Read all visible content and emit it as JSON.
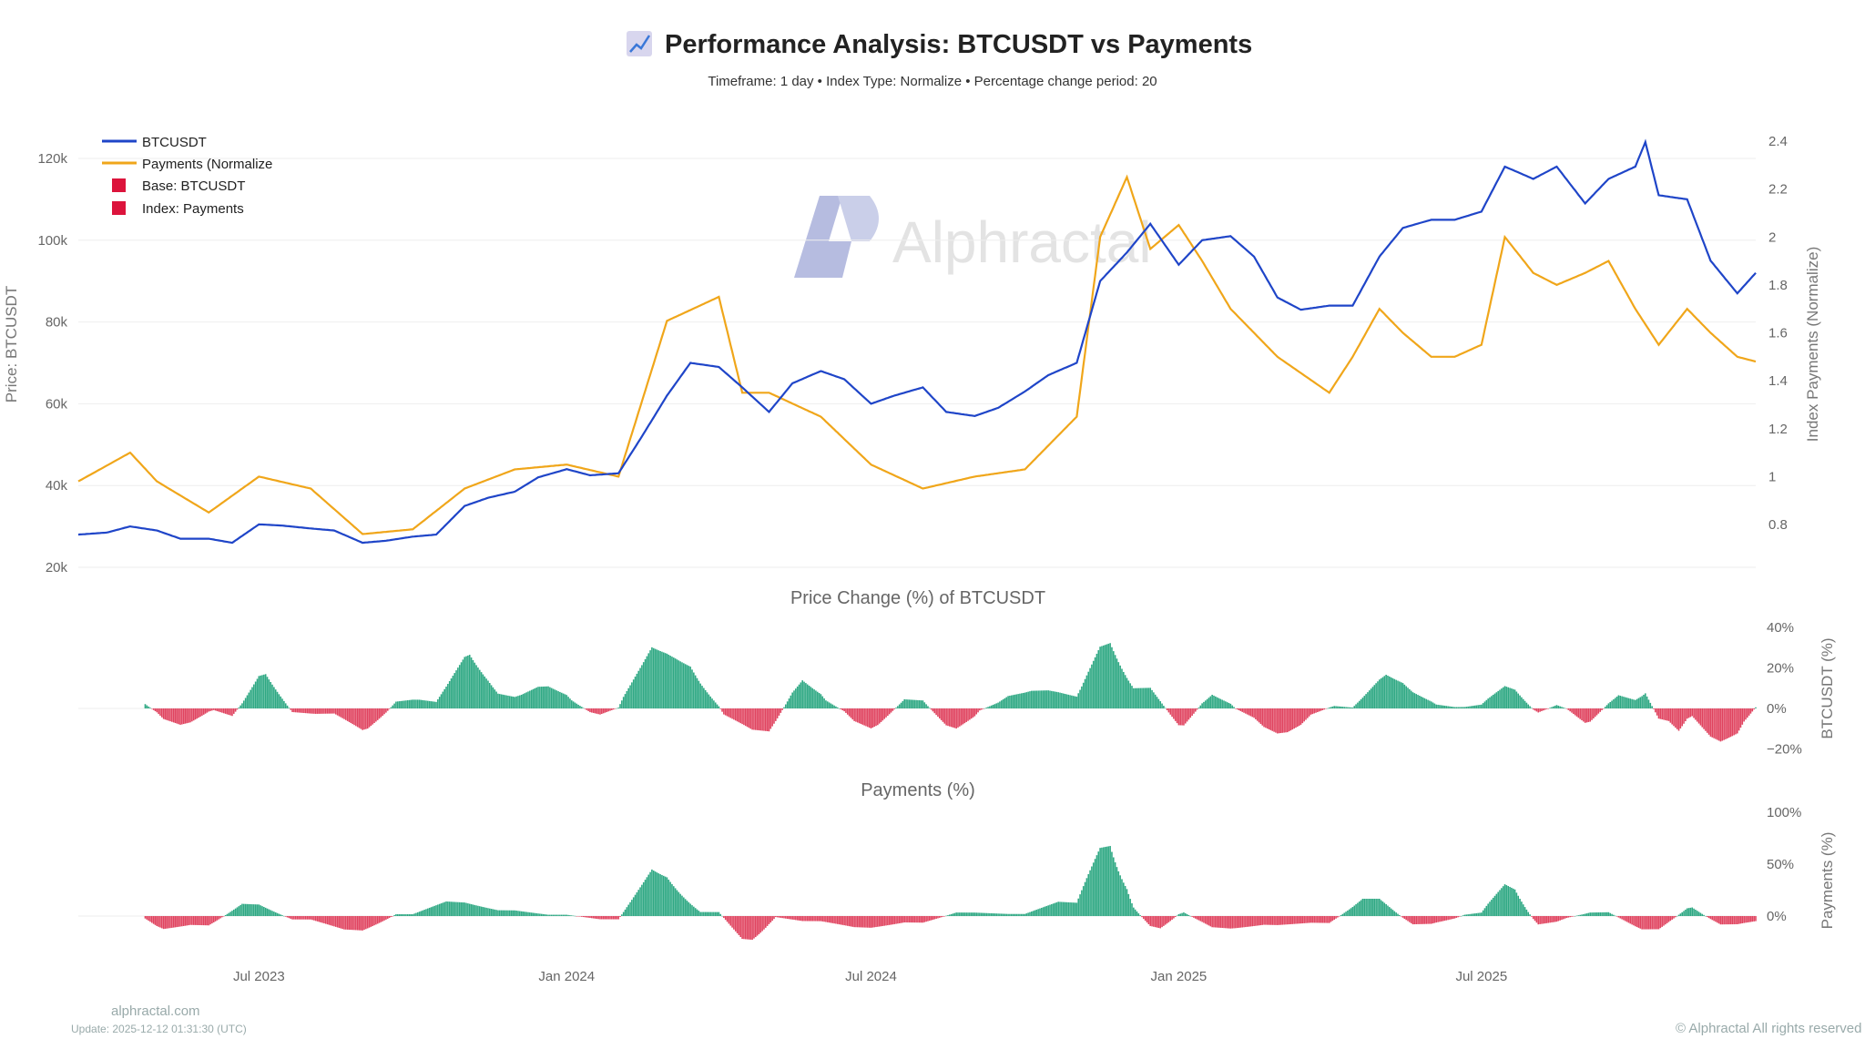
{
  "header": {
    "title": "Performance Analysis: BTCUSDT vs Payments",
    "title_icon": "chart-increasing-icon",
    "subtitle": "Timeframe: 1 day  •  Index Type: Normalize  •  Percentage change period: 20"
  },
  "watermark": "Alphractal",
  "footer": {
    "site": "alphractal.com",
    "update": "Update: 2025-12-12 01:31:30 (UTC)",
    "copyright": "© Alphractal All rights reserved"
  },
  "colors": {
    "btc": "#1f45c8",
    "payments": "#f0a61a",
    "positive": "#2ea883",
    "negative": "#e0435f",
    "legend_square": "#dc143c"
  },
  "chart_data": [
    {
      "type": "line",
      "legend": [
        "BTCUSDT",
        "Payments (Normalize",
        "Base: BTCUSDT",
        "Index: Payments"
      ],
      "legend_placement": "top-left",
      "ylabel_left": "Price: BTCUSDT",
      "ylabel_right": "Index Payments (Normalize)",
      "yticks_left": [
        "120k",
        "100k",
        "80k",
        "60k",
        "40k",
        "20k"
      ],
      "yticks_right": [
        "2.4",
        "2.2",
        "2",
        "1.8",
        "1.6",
        "1.4",
        "1.2",
        "1",
        "0.8"
      ],
      "ylim_left": [
        20000,
        120000
      ],
      "ylim_right": [
        0.8,
        2.4
      ],
      "xticks": [
        "Jul 2023",
        "Jan 2024",
        "Jul 2024",
        "Jan 2025",
        "Jul 2025"
      ],
      "xlim": [
        "2023-03-15",
        "2025-12-12"
      ],
      "grid": true,
      "series": [
        {
          "name": "BTCUSDT",
          "axis": "left",
          "x": [
            "2023-03-15",
            "2023-04-01",
            "2023-04-15",
            "2023-05-01",
            "2023-05-15",
            "2023-06-01",
            "2023-06-15",
            "2023-07-01",
            "2023-07-15",
            "2023-08-01",
            "2023-08-15",
            "2023-09-01",
            "2023-09-15",
            "2023-10-01",
            "2023-10-15",
            "2023-11-01",
            "2023-11-15",
            "2023-12-01",
            "2023-12-15",
            "2024-01-01",
            "2024-01-15",
            "2024-02-01",
            "2024-02-15",
            "2024-03-01",
            "2024-03-15",
            "2024-04-01",
            "2024-04-15",
            "2024-05-01",
            "2024-05-15",
            "2024-06-01",
            "2024-06-15",
            "2024-07-01",
            "2024-07-15",
            "2024-08-01",
            "2024-08-15",
            "2024-09-01",
            "2024-09-15",
            "2024-10-01",
            "2024-10-15",
            "2024-11-01",
            "2024-11-15",
            "2024-12-01",
            "2024-12-15",
            "2025-01-01",
            "2025-01-15",
            "2025-02-01",
            "2025-02-15",
            "2025-03-01",
            "2025-03-15",
            "2025-04-01",
            "2025-04-15",
            "2025-05-01",
            "2025-05-15",
            "2025-06-01",
            "2025-06-15",
            "2025-07-01",
            "2025-07-15",
            "2025-08-01",
            "2025-08-15",
            "2025-09-01",
            "2025-09-15",
            "2025-10-01",
            "2025-10-07",
            "2025-10-15",
            "2025-11-01",
            "2025-11-15",
            "2025-12-01",
            "2025-12-12"
          ],
          "y": [
            28000,
            28500,
            30000,
            29000,
            27000,
            27000,
            26000,
            30500,
            30200,
            29500,
            29000,
            26000,
            26500,
            27500,
            28000,
            35000,
            37000,
            38500,
            42000,
            44000,
            42500,
            43000,
            52000,
            62000,
            70000,
            69000,
            64000,
            58000,
            65000,
            68000,
            66000,
            60000,
            62000,
            64000,
            58000,
            57000,
            59000,
            63000,
            67000,
            70000,
            90000,
            97000,
            104000,
            94000,
            100000,
            101000,
            96000,
            86000,
            83000,
            84000,
            84000,
            96000,
            103000,
            105000,
            105000,
            107000,
            118000,
            115000,
            118000,
            109000,
            115000,
            118000,
            124000,
            111000,
            110000,
            95000,
            87000,
            92000
          ]
        },
        {
          "name": "Payments (Normalize",
          "axis": "right",
          "x": [
            "2023-03-15",
            "2023-04-15",
            "2023-05-01",
            "2023-06-01",
            "2023-07-01",
            "2023-08-01",
            "2023-09-01",
            "2023-10-01",
            "2023-11-01",
            "2023-12-01",
            "2024-01-01",
            "2024-02-01",
            "2024-03-01",
            "2024-04-01",
            "2024-04-15",
            "2024-05-01",
            "2024-06-01",
            "2024-07-01",
            "2024-08-01",
            "2024-09-01",
            "2024-10-01",
            "2024-11-01",
            "2024-11-15",
            "2024-12-01",
            "2024-12-15",
            "2025-01-01",
            "2025-01-15",
            "2025-02-01",
            "2025-03-01",
            "2025-04-01",
            "2025-04-15",
            "2025-05-01",
            "2025-05-15",
            "2025-06-01",
            "2025-06-15",
            "2025-07-01",
            "2025-07-15",
            "2025-08-01",
            "2025-08-15",
            "2025-09-01",
            "2025-09-15",
            "2025-10-01",
            "2025-10-15",
            "2025-11-01",
            "2025-11-15",
            "2025-12-01",
            "2025-12-12"
          ],
          "y": [
            0.98,
            1.1,
            0.98,
            0.85,
            1.0,
            0.95,
            0.76,
            0.78,
            0.95,
            1.03,
            1.05,
            1.0,
            1.65,
            1.75,
            1.35,
            1.35,
            1.25,
            1.05,
            0.95,
            1.0,
            1.03,
            1.25,
            2.0,
            2.25,
            1.95,
            2.05,
            1.9,
            1.7,
            1.5,
            1.35,
            1.5,
            1.7,
            1.6,
            1.5,
            1.5,
            1.55,
            2.0,
            1.85,
            1.8,
            1.85,
            1.9,
            1.7,
            1.55,
            1.7,
            1.6,
            1.5,
            1.48
          ]
        }
      ]
    },
    {
      "type": "bar",
      "title": "Price Change (%) of BTCUSDT",
      "ylabel": "BTCUSDT (%)",
      "yticks": [
        "40%",
        "20%",
        "0%",
        "−20%"
      ],
      "ylim": [
        -22,
        42
      ],
      "period": 20,
      "source_series": "BTCUSDT"
    },
    {
      "type": "bar",
      "title": "Payments (%)",
      "ylabel": "Payments (%)",
      "yticks": [
        "100%",
        "50%",
        "0%"
      ],
      "ylim": [
        -30,
        105
      ],
      "period": 20,
      "source_series": "Payments (Normalize"
    }
  ]
}
